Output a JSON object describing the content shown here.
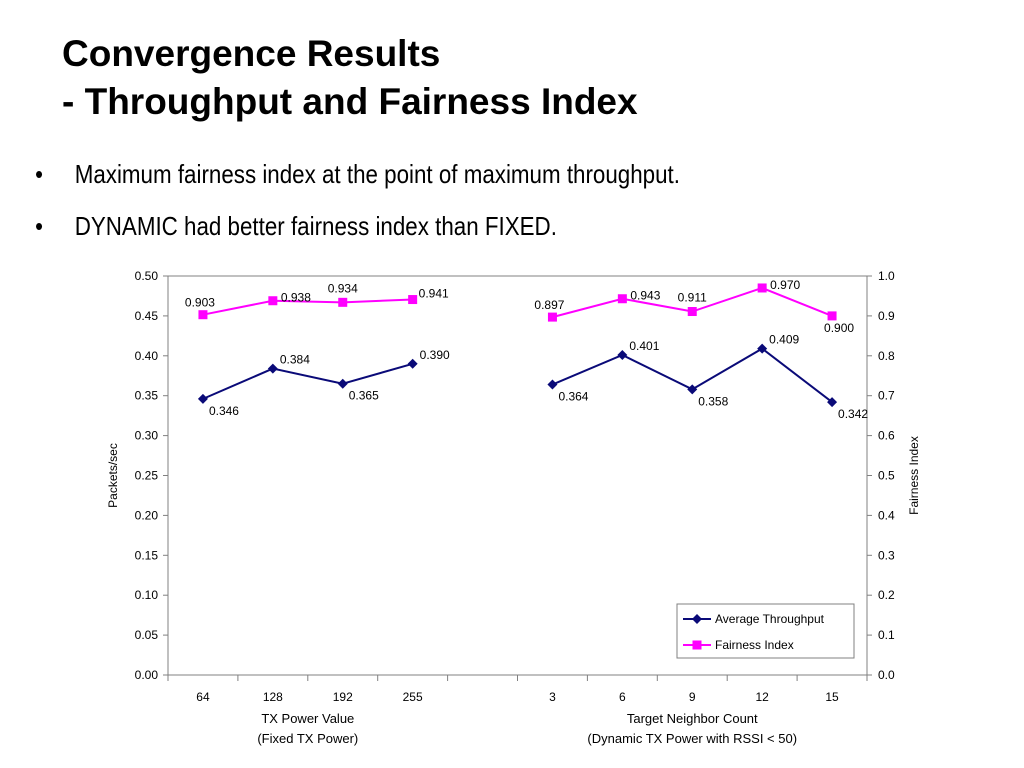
{
  "slide": {
    "title_line1": "Convergence Results",
    "title_line2": "- Throughput and Fairness Index",
    "bullets": [
      "Maximum fairness index at the point of maximum throughput.",
      "DYNAMIC had better fairness index than FIXED."
    ],
    "bullet_glyph": "•"
  },
  "chart_data": {
    "type": "line",
    "categories": [
      "64",
      "128",
      "192",
      "255",
      "",
      "3",
      "6",
      "9",
      "12",
      "15"
    ],
    "series": [
      {
        "name": "Average Throughput",
        "axis": "left",
        "color": "#0a0a78",
        "marker": "diamond",
        "segments": [
          {
            "x": [
              "64",
              "128",
              "192",
              "255"
            ],
            "values": [
              0.346,
              0.384,
              0.365,
              0.39
            ],
            "labels": [
              "0.346",
              "0.384",
              "0.365",
              "0.390"
            ]
          },
          {
            "x": [
              "3",
              "6",
              "9",
              "12",
              "15"
            ],
            "values": [
              0.364,
              0.401,
              0.358,
              0.409,
              0.342
            ],
            "labels": [
              "0.364",
              "0.401",
              "0.358",
              "0.409",
              "0.342"
            ]
          }
        ]
      },
      {
        "name": "Fairness Index",
        "axis": "right",
        "color": "#ff00ff",
        "marker": "square",
        "segments": [
          {
            "x": [
              "64",
              "128",
              "192",
              "255"
            ],
            "values": [
              0.903,
              0.938,
              0.934,
              0.941
            ],
            "labels": [
              "0.903",
              "0.938",
              "0.934",
              "0.941"
            ]
          },
          {
            "x": [
              "3",
              "6",
              "9",
              "12",
              "15"
            ],
            "values": [
              0.897,
              0.943,
              0.911,
              0.97,
              0.9
            ],
            "labels": [
              "0.897",
              "0.943",
              "0.911",
              "0.970",
              "0.900"
            ]
          }
        ]
      }
    ],
    "y_left": {
      "label": "Packets/sec",
      "min": 0,
      "max": 0.5,
      "ticks": [
        "0.00",
        "0.05",
        "0.10",
        "0.15",
        "0.20",
        "0.25",
        "0.30",
        "0.35",
        "0.40",
        "0.45",
        "0.50"
      ]
    },
    "y_right": {
      "label": "Fairness Index",
      "min": 0,
      "max": 1.0,
      "ticks": [
        "0.0",
        "0.1",
        "0.2",
        "0.3",
        "0.4",
        "0.5",
        "0.6",
        "0.7",
        "0.8",
        "0.9",
        "1.0"
      ]
    },
    "x_groups": [
      {
        "label_line1": "TX Power Value",
        "label_line2": "(Fixed TX Power)"
      },
      {
        "label_line1": "Target Neighbor Count",
        "label_line2": "(Dynamic TX Power with RSSI < 50)"
      }
    ],
    "legend": {
      "placement": "bottom-right",
      "entries": [
        "Average Throughput",
        "Fairness Index"
      ]
    },
    "grid": false
  }
}
